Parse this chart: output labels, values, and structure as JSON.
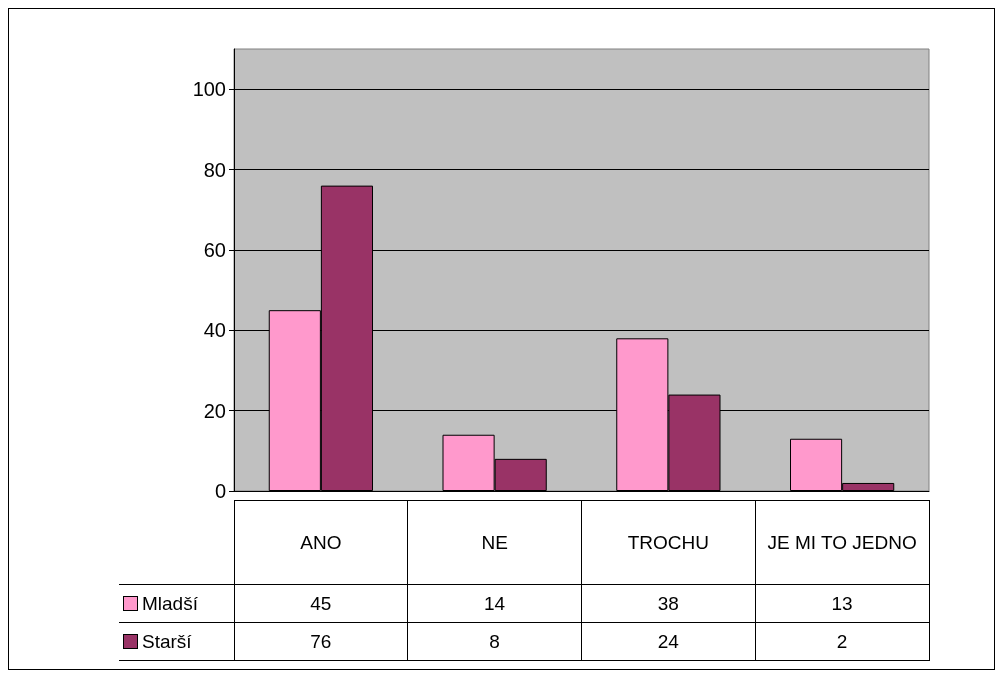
{
  "chart_data": {
    "type": "bar",
    "categories": [
      "ANO",
      "NE",
      "TROCHU",
      "JE MI TO JEDNO"
    ],
    "series": [
      {
        "name": "Mladší",
        "color": "#ff99cc",
        "values": [
          45,
          14,
          38,
          13
        ]
      },
      {
        "name": "Starší",
        "color": "#993366",
        "values": [
          76,
          8,
          24,
          2
        ]
      }
    ],
    "ylim": [
      0,
      110
    ],
    "yticks": [
      0,
      20,
      40,
      60,
      80,
      100
    ],
    "grid": "y",
    "legend": "bottom",
    "data_labels": true
  }
}
